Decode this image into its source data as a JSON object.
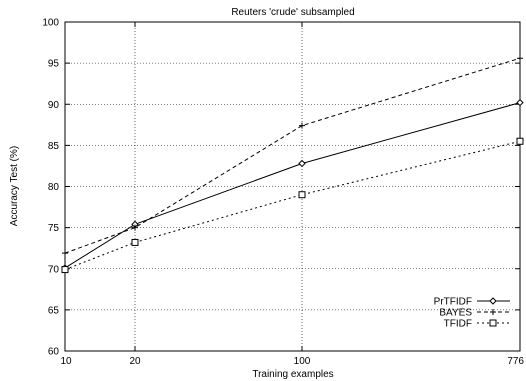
{
  "chart_data": {
    "type": "line",
    "title": "Reuters 'crude' subsampled",
    "xlabel": "Training examples",
    "ylabel": "Accuracy Test (%)",
    "x_ticks": [
      "10",
      "20",
      "100",
      "776"
    ],
    "y_ticks": [
      "60",
      "65",
      "70",
      "75",
      "80",
      "85",
      "90",
      "95",
      "100"
    ],
    "ylim": [
      60,
      100
    ],
    "grid": true,
    "legend_position": "bottom-right",
    "series": [
      {
        "name": "PrTFIDF",
        "dash": "solid",
        "marker": "diamond",
        "values": [
          70.1,
          75.4,
          82.8,
          90.2
        ]
      },
      {
        "name": "BAYES",
        "dash": "dashed",
        "marker": "plus",
        "values": [
          71.9,
          75.0,
          87.4,
          95.6
        ]
      },
      {
        "name": "TFIDF",
        "dash": "dotted",
        "marker": "square",
        "values": [
          69.9,
          73.2,
          79.0,
          85.5
        ]
      }
    ]
  }
}
